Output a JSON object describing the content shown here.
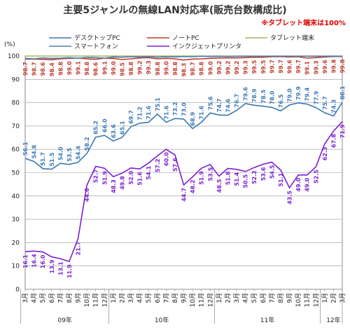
{
  "chart_data": {
    "type": "line",
    "title": "主要5ジャンルの無線LAN対応率(販売台数構成比)",
    "note": "※タブレット端末は100%",
    "yunit": "(%)",
    "ylim": [
      0,
      100
    ],
    "yticks": [
      0,
      10,
      20,
      30,
      40,
      50,
      60,
      70,
      80,
      90,
      100
    ],
    "grid": true,
    "legend_placement": "top",
    "x": [
      "3月",
      "4月",
      "5月",
      "6月",
      "7月",
      "8月",
      "9月",
      "10月",
      "11月",
      "12月",
      "1月",
      "2月",
      "3月",
      "4月",
      "5月",
      "6月",
      "7月",
      "8月",
      "9月",
      "10月",
      "11月",
      "12月",
      "1月",
      "2月",
      "3月",
      "4月",
      "5月",
      "6月",
      "7月",
      "8月",
      "9月",
      "10月",
      "11月",
      "12月",
      "1月",
      "2月",
      "3月"
    ],
    "year_groups": [
      {
        "label": "09年",
        "start": 0,
        "end": 9
      },
      {
        "label": "10年",
        "start": 10,
        "end": 21
      },
      {
        "label": "11年",
        "start": 22,
        "end": 33
      },
      {
        "label": "12年",
        "start": 34,
        "end": 36
      }
    ],
    "series": [
      {
        "name": "デスクトップPC",
        "color": "#3a78b5",
        "show_labels": true,
        "label_pos": "above",
        "values": [
          56.1,
          54.8,
          51.7,
          51.5,
          54.0,
          53.5,
          54.4,
          58.2,
          65.2,
          66.0,
          63.6,
          65.1,
          69.7,
          71.2,
          71.6,
          75.1,
          71.6,
          73.2,
          73.0,
          68.9,
          71.6,
          75.6,
          74.7,
          74.6,
          76.7,
          79.6,
          78.9,
          78.5,
          78.0,
          76.5,
          79.0,
          79.9,
          79.4,
          77.9,
          75.7,
          74.3,
          80.1
        ]
      },
      {
        "name": "ノートPC",
        "color": "#c0392b",
        "show_labels": true,
        "label_pos": "below",
        "values": [
          98.7,
          98.7,
          98.6,
          98.4,
          98.8,
          99.0,
          99.1,
          98.8,
          98.6,
          99.1,
          99.0,
          98.5,
          98.8,
          99.2,
          99.3,
          98.8,
          99.0,
          98.8,
          98.3,
          98.7,
          98.8,
          99.0,
          99.2,
          99.2,
          99.2,
          99.3,
          99.5,
          99.5,
          99.7,
          99.7,
          99.6,
          99.7,
          99.1,
          99.3,
          99.6,
          99.8,
          99.8
        ]
      },
      {
        "name": "タブレット端末",
        "color": "#9bbb59",
        "show_labels": false,
        "values": [
          100,
          100,
          100,
          100,
          100,
          100,
          100,
          100,
          100,
          100,
          100,
          100,
          100,
          100,
          100,
          100,
          100,
          100,
          100,
          100,
          100,
          100,
          100,
          100,
          100,
          100,
          100,
          100,
          100,
          100,
          100,
          100,
          100,
          100,
          100,
          100,
          100
        ]
      },
      {
        "name": "スマートフォン",
        "color": "#4a7fb5",
        "show_labels": false,
        "values": [
          99.0,
          98.8,
          99.2,
          99.0,
          99.1,
          99.3,
          99.0,
          99.4,
          99.3,
          99.1,
          99.6,
          99.5,
          99.7,
          99.6,
          99.8,
          99.5,
          99.7,
          99.6,
          99.8,
          99.7,
          99.9,
          99.8,
          99.9,
          99.8,
          99.9,
          99.9,
          99.9,
          99.9,
          99.9,
          99.9,
          99.9,
          99.9,
          99.9,
          99.9,
          99.9,
          99.9,
          99.9
        ]
      },
      {
        "name": "インクジェットプリンタ",
        "color": "#7b1fd0",
        "show_labels": true,
        "label_pos": "below",
        "values": [
          16.1,
          16.4,
          16.0,
          13.9,
          13.1,
          11.9,
          21.7,
          44.6,
          52.7,
          51.9,
          48.3,
          49.8,
          52.0,
          51.6,
          54.1,
          57.2,
          60.0,
          57.6,
          44.7,
          48.2,
          51.9,
          53.5,
          48.5,
          51.8,
          51.4,
          50.5,
          52.2,
          53.6,
          54.5,
          51.1,
          43.5,
          49.0,
          49.0,
          52.5,
          62.3,
          67.8,
          71.9
        ]
      }
    ]
  }
}
